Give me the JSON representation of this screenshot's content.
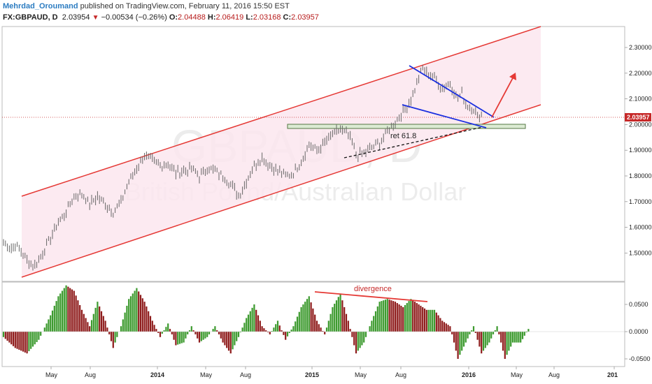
{
  "header": {
    "author": "Mehrdad_Oroumand",
    "published_text": " published on TradingView.com, February 11, 2016 15:50 EST",
    "symbol": "FX:GBPAUD, D",
    "last": "2.03954",
    "change": "−0.00534 (−0.26%)",
    "o_label": "O:",
    "o_value": "2.04488",
    "h_label": "H:",
    "h_value": "2.06419",
    "l_label": "L:",
    "l_value": "2.03168",
    "c_label": "C:",
    "c_value": "2.03957"
  },
  "watermark": {
    "symbol": "GBPAUD, D",
    "name": "British Pound/Australian Dollar"
  },
  "colors": {
    "channel": "#e53935",
    "channel_fill": "#fbe6ee",
    "wedge": "#1a2fe0",
    "bull_bar": "#3c9a2e",
    "bear_bar": "#8e1b1b",
    "price_tag": "#c62828",
    "zone_fill": "#dcebd3",
    "zone_stroke": "#557744"
  },
  "chart_data": [
    {
      "type": "line",
      "series": [],
      "y_ticks": [
        "2.30000",
        "2.20000",
        "2.10000",
        "2.00000",
        "1.90000",
        "1.80000",
        "1.70000",
        "1.60000",
        "1.50000"
      ],
      "ylim": [
        1.42,
        2.34
      ],
      "x_ticks": [
        "May",
        "Aug",
        "2014",
        "May",
        "Aug",
        "2015",
        "May",
        "Aug",
        "2016",
        "May",
        "Aug",
        "201"
      ],
      "price_tag": "2.03957",
      "price_points": [
        [
          0,
          1.54
        ],
        [
          2,
          1.52
        ],
        [
          3,
          1.53
        ],
        [
          4,
          1.52
        ],
        [
          6,
          1.47
        ],
        [
          8,
          1.45
        ],
        [
          10,
          1.5
        ],
        [
          12,
          1.56
        ],
        [
          14,
          1.62
        ],
        [
          16,
          1.66
        ],
        [
          18,
          1.72
        ],
        [
          20,
          1.73
        ],
        [
          22,
          1.69
        ],
        [
          24,
          1.72
        ],
        [
          26,
          1.69
        ],
        [
          28,
          1.66
        ],
        [
          30,
          1.7
        ],
        [
          32,
          1.78
        ],
        [
          34,
          1.83
        ],
        [
          36,
          1.88
        ],
        [
          38,
          1.86
        ],
        [
          40,
          1.84
        ],
        [
          42,
          1.85
        ],
        [
          44,
          1.81
        ],
        [
          46,
          1.82
        ],
        [
          48,
          1.83
        ],
        [
          50,
          1.8
        ],
        [
          52,
          1.83
        ],
        [
          54,
          1.82
        ],
        [
          56,
          1.8
        ],
        [
          58,
          1.77
        ],
        [
          60,
          1.72
        ],
        [
          62,
          1.78
        ],
        [
          64,
          1.84
        ],
        [
          66,
          1.87
        ],
        [
          68,
          1.84
        ],
        [
          70,
          1.82
        ],
        [
          72,
          1.8
        ],
        [
          74,
          1.81
        ],
        [
          76,
          1.86
        ],
        [
          78,
          1.92
        ],
        [
          80,
          1.9
        ],
        [
          82,
          1.93
        ],
        [
          84,
          1.96
        ],
        [
          86,
          1.98
        ],
        [
          88,
          1.96
        ],
        [
          89,
          1.93
        ],
        [
          90,
          1.88
        ],
        [
          92,
          1.89
        ],
        [
          94,
          1.91
        ],
        [
          96,
          1.93
        ],
        [
          98,
          1.97
        ],
        [
          100,
          2.01
        ],
        [
          102,
          2.05
        ],
        [
          104,
          2.1
        ],
        [
          105,
          2.14
        ],
        [
          106,
          2.18
        ],
        [
          107,
          2.22
        ],
        [
          108,
          2.2
        ],
        [
          110,
          2.18
        ],
        [
          112,
          2.14
        ],
        [
          114,
          2.16
        ],
        [
          116,
          2.1
        ],
        [
          117,
          2.12
        ],
        [
          118,
          2.08
        ],
        [
          120,
          2.06
        ],
        [
          121,
          2.03
        ],
        [
          122,
          2.04
        ]
      ],
      "annotations": [
        {
          "kind": "text",
          "text": "ret 61.8"
        }
      ]
    },
    {
      "type": "bar",
      "series": [],
      "y_ticks": [
        "0.0500",
        "0.0000",
        "-0.0500"
      ],
      "ylim": [
        -0.065,
        0.09
      ],
      "histogram_points": [
        [
          0,
          -0.01
        ],
        [
          3,
          -0.03
        ],
        [
          6,
          -0.04
        ],
        [
          9,
          -0.015
        ],
        [
          12,
          0.03
        ],
        [
          14,
          0.065
        ],
        [
          16,
          0.085
        ],
        [
          18,
          0.075
        ],
        [
          20,
          0.04
        ],
        [
          22,
          0.01
        ],
        [
          24,
          0.055
        ],
        [
          26,
          0.02
        ],
        [
          28,
          -0.03
        ],
        [
          30,
          0.01
        ],
        [
          32,
          0.06
        ],
        [
          34,
          0.08
        ],
        [
          36,
          0.055
        ],
        [
          38,
          0.02
        ],
        [
          40,
          -0.01
        ],
        [
          42,
          0.015
        ],
        [
          44,
          -0.025
        ],
        [
          46,
          -0.02
        ],
        [
          48,
          0.01
        ],
        [
          50,
          -0.02
        ],
        [
          52,
          -0.01
        ],
        [
          54,
          0.01
        ],
        [
          56,
          -0.02
        ],
        [
          58,
          -0.04
        ],
        [
          60,
          -0.01
        ],
        [
          62,
          0.025
        ],
        [
          64,
          0.05
        ],
        [
          66,
          0.01
        ],
        [
          68,
          -0.005
        ],
        [
          70,
          0.02
        ],
        [
          72,
          -0.015
        ],
        [
          74,
          0.01
        ],
        [
          76,
          0.045
        ],
        [
          78,
          0.065
        ],
        [
          80,
          0.02
        ],
        [
          82,
          -0.005
        ],
        [
          84,
          0.045
        ],
        [
          86,
          0.07
        ],
        [
          88,
          0.02
        ],
        [
          90,
          -0.04
        ],
        [
          92,
          -0.02
        ],
        [
          94,
          0.02
        ],
        [
          96,
          0.055
        ],
        [
          98,
          0.06
        ],
        [
          100,
          0.055
        ],
        [
          102,
          0.045
        ],
        [
          104,
          0.06
        ],
        [
          106,
          0.05
        ],
        [
          108,
          0.04
        ],
        [
          110,
          0.04
        ],
        [
          112,
          0.02
        ],
        [
          114,
          0.01
        ],
        [
          116,
          -0.05
        ],
        [
          118,
          -0.02
        ],
        [
          120,
          0.01
        ],
        [
          122,
          -0.04
        ],
        [
          124,
          -0.02
        ],
        [
          126,
          0.01
        ],
        [
          128,
          -0.05
        ],
        [
          130,
          -0.02
        ],
        [
          132,
          -0.02
        ],
        [
          134,
          0.005
        ]
      ],
      "annotations": [
        {
          "kind": "text",
          "text": "divergence"
        }
      ]
    }
  ]
}
